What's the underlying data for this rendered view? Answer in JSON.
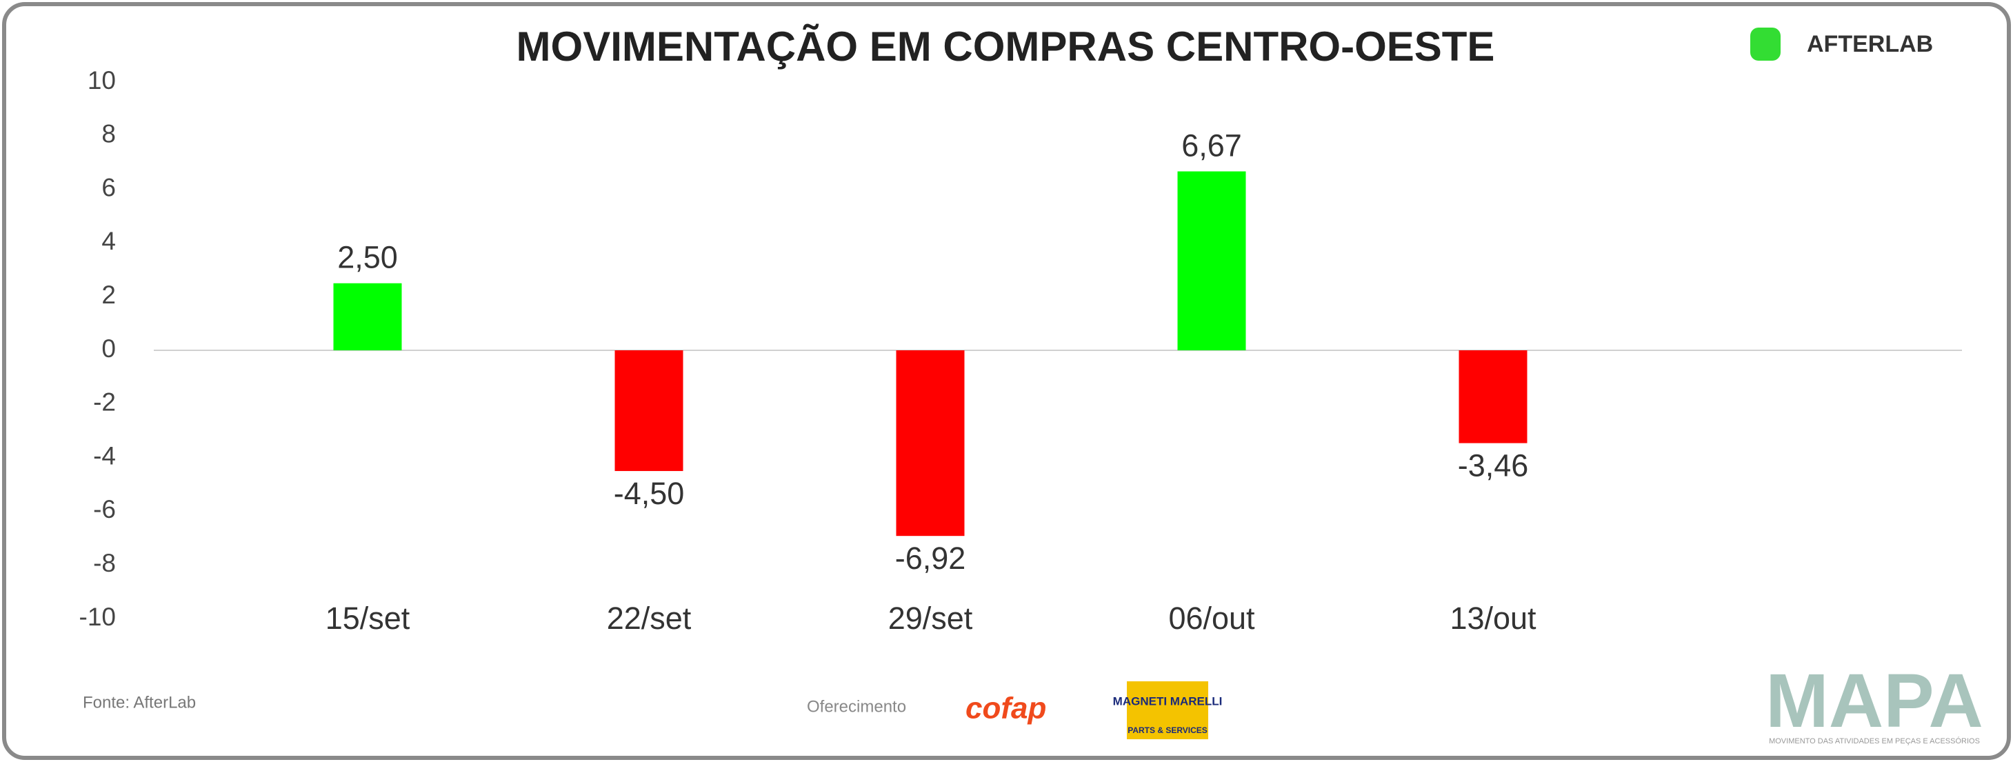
{
  "chart_data": {
    "type": "bar",
    "title": "MOVIMENTAÇÃO EM COMPRAS CENTRO-OESTE",
    "categories": [
      "15/set",
      "22/set",
      "29/set",
      "06/out",
      "13/out"
    ],
    "values": [
      2.5,
      -4.5,
      -6.92,
      6.67,
      -3.46
    ],
    "value_labels": [
      "2,50",
      "-4,50",
      "-6,92",
      "6,67",
      "-3,46"
    ],
    "colors": [
      "#00ff00",
      "#ff0000",
      "#ff0000",
      "#00ff00",
      "#ff0000"
    ],
    "ylim": [
      -10,
      10
    ],
    "yticks": [
      -10,
      -8,
      -6,
      -4,
      -2,
      0,
      2,
      4,
      6,
      8,
      10
    ],
    "source": "Fonte: AfterLab",
    "sponsor_label": "Oferecimento",
    "brand": "AFTERLAB",
    "sponsors": [
      "cofap",
      "MAGNETI MARELLI",
      "PARTS & SERVICES"
    ],
    "footer_logo": "MAPA",
    "footer_tagline": "MOVIMENTO DAS ATIVIDADES EM PEÇAS E ACESSÓRIOS"
  }
}
